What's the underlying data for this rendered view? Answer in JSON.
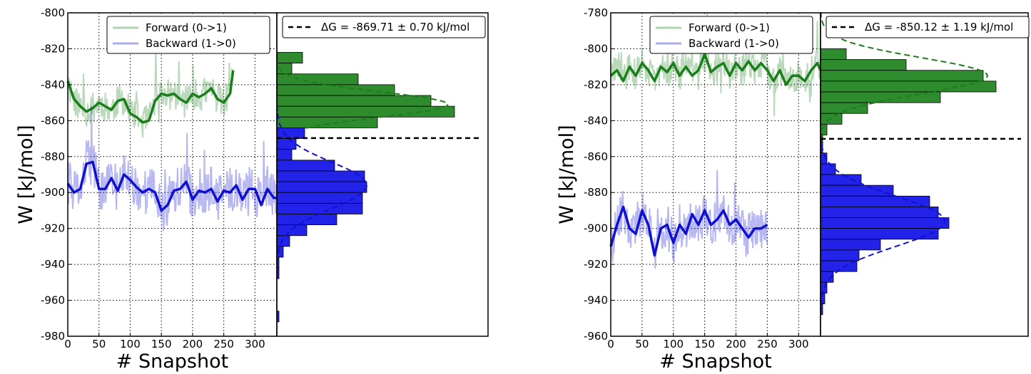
{
  "chart_data": [
    {
      "type": "line",
      "xlabel": "# Snapshot",
      "ylabel": "W [kJ/mol]",
      "xlim": [
        0,
        335
      ],
      "ylim": [
        -980,
        -800
      ],
      "xticks": [
        "0",
        "50",
        "100",
        "150",
        "200",
        "250",
        "300"
      ],
      "yticks": [
        "-800",
        "-820",
        "-840",
        "-860",
        "-880",
        "-900",
        "-920",
        "-940",
        "-960",
        "-980"
      ],
      "grid": true,
      "legend": {
        "placement": "top",
        "entries": [
          "Forward (0->1)",
          "Backward (1->0)"
        ]
      },
      "dg_legend": "ΔG = -869.71 ± 0.70 kJ/mol",
      "dg_value": -869.71,
      "series": [
        {
          "name": "Forward (0->1)",
          "color": "#1a7f1a",
          "x": [
            0,
            10,
            20,
            30,
            40,
            50,
            60,
            70,
            80,
            90,
            100,
            110,
            120,
            130,
            140,
            150,
            160,
            170,
            180,
            190,
            200,
            210,
            220,
            230,
            240,
            250,
            260,
            265
          ],
          "smoothed": [
            -838,
            -848,
            -852,
            -855,
            -853,
            -850,
            -852,
            -854,
            -849,
            -848,
            -856,
            -858,
            -861,
            -860,
            -849,
            -845,
            -846,
            -845,
            -848,
            -850,
            -845,
            -847,
            -845,
            -842,
            -848,
            -850,
            -845,
            -832
          ]
        },
        {
          "name": "Backward (1->0)",
          "color": "#1010d0",
          "x": [
            0,
            10,
            20,
            30,
            40,
            50,
            60,
            70,
            80,
            90,
            100,
            110,
            120,
            130,
            140,
            150,
            160,
            170,
            180,
            190,
            200,
            210,
            220,
            230,
            240,
            250,
            260,
            270,
            280,
            290,
            300,
            310,
            320,
            330,
            335
          ],
          "smoothed": [
            -895,
            -900,
            -898,
            -884,
            -883,
            -898,
            -898,
            -892,
            -899,
            -890,
            -893,
            -897,
            -900,
            -898,
            -900,
            -910,
            -907,
            -899,
            -898,
            -894,
            -904,
            -899,
            -900,
            -898,
            -905,
            -899,
            -900,
            -896,
            -904,
            -898,
            -898,
            -907,
            -898,
            -903,
            -903
          ]
        }
      ],
      "histogram": {
        "forward": {
          "bins": [
            -822,
            -828,
            -834,
            -840,
            -846,
            -852,
            -858,
            -864,
            -870
          ],
          "counts": [
            12,
            7,
            38,
            55,
            72,
            83,
            47,
            5,
            1
          ],
          "fit_mean": -851,
          "fit_sd": 7,
          "fit_peak": 80
        },
        "backward": {
          "bins": [
            -864,
            -870,
            -876,
            -882,
            -888,
            -894,
            -900,
            -906,
            -912,
            -918,
            -924,
            -930,
            -936,
            -942,
            -948,
            -954,
            -960,
            -966
          ],
          "counts": [
            13,
            9,
            7,
            27,
            41,
            42,
            40,
            40,
            28,
            14,
            6,
            3,
            1,
            1,
            0,
            0,
            0,
            1
          ],
          "fit_mean": -896,
          "fit_sd": 13,
          "fit_peak": 42
        }
      }
    },
    {
      "type": "line",
      "xlabel": "# Snapshot",
      "ylabel": "W [kJ/mol]",
      "xlim": [
        0,
        335
      ],
      "ylim": [
        -960,
        -780
      ],
      "xticks": [
        "0",
        "50",
        "100",
        "150",
        "200",
        "250",
        "300"
      ],
      "yticks": [
        "-780",
        "-800",
        "-820",
        "-840",
        "-860",
        "-880",
        "-900",
        "-920",
        "-940",
        "-960"
      ],
      "grid": true,
      "legend": {
        "placement": "top",
        "entries": [
          "Forward (0->1)",
          "Backward (1->0)"
        ]
      },
      "dg_legend": "ΔG = -850.12 ± 1.19 kJ/mol",
      "dg_value": -850.12,
      "series": [
        {
          "name": "Forward (0->1)",
          "color": "#1a7f1a",
          "x": [
            0,
            10,
            20,
            30,
            40,
            50,
            60,
            70,
            80,
            90,
            100,
            110,
            120,
            130,
            140,
            150,
            160,
            170,
            180,
            190,
            200,
            210,
            220,
            230,
            240,
            250,
            260,
            270,
            280,
            290,
            300,
            310,
            320,
            330,
            335
          ],
          "smoothed": [
            -815,
            -812,
            -818,
            -810,
            -815,
            -808,
            -812,
            -818,
            -810,
            -813,
            -808,
            -815,
            -810,
            -815,
            -812,
            -803,
            -813,
            -810,
            -808,
            -815,
            -808,
            -812,
            -807,
            -812,
            -808,
            -812,
            -818,
            -812,
            -820,
            -815,
            -815,
            -818,
            -812,
            -808,
            -812
          ]
        },
        {
          "name": "Backward (1->0)",
          "color": "#1010d0",
          "x": [
            0,
            10,
            20,
            30,
            40,
            50,
            60,
            70,
            80,
            90,
            100,
            110,
            120,
            130,
            140,
            150,
            160,
            170,
            180,
            190,
            200,
            210,
            220,
            230,
            240,
            250
          ],
          "smoothed": [
            -910,
            -898,
            -888,
            -900,
            -903,
            -890,
            -898,
            -915,
            -900,
            -898,
            -908,
            -898,
            -903,
            -892,
            -898,
            -890,
            -898,
            -895,
            -890,
            -898,
            -895,
            -900,
            -905,
            -900,
            -900,
            -898
          ]
        }
      ],
      "histogram": {
        "forward": {
          "bins": [
            -800,
            -806,
            -812,
            -818,
            -824,
            -830,
            -836,
            -842,
            -848
          ],
          "counts": [
            12,
            40,
            76,
            82,
            56,
            22,
            10,
            3,
            1
          ],
          "fit_mean": -815,
          "fit_sd": 10,
          "fit_peak": 78
        },
        "backward": {
          "bins": [
            -852,
            -858,
            -864,
            -870,
            -876,
            -882,
            -888,
            -894,
            -900,
            -906,
            -912,
            -918,
            -924,
            -930,
            -936,
            -942
          ],
          "counts": [
            1,
            3,
            7,
            19,
            34,
            51,
            55,
            60,
            55,
            28,
            18,
            17,
            6,
            3,
            2,
            1
          ],
          "fit_mean": -896,
          "fit_sd": 14,
          "fit_peak": 58
        }
      }
    }
  ]
}
